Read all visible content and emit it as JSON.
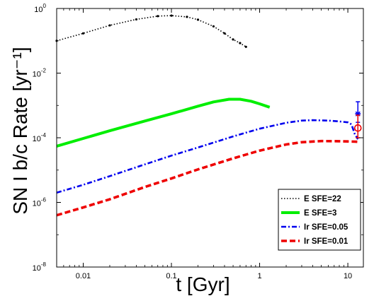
{
  "chart_data": {
    "type": "line",
    "title": "",
    "xlabel": "t [Gyr]",
    "ylabel": "SN I b/c Rate [yr⁻¹]",
    "xscale": "log",
    "yscale": "log",
    "xlim": [
      0.005,
      15
    ],
    "ylim": [
      1e-08,
      1
    ],
    "x_ticks": [
      {
        "value": 0.01,
        "label": "0.01"
      },
      {
        "value": 0.1,
        "label": "0.1"
      },
      {
        "value": 1,
        "label": "1"
      },
      {
        "value": 10,
        "label": "10"
      }
    ],
    "y_ticks": [
      {
        "value": 1e-08,
        "base": "10",
        "exp": "-8"
      },
      {
        "value": 1e-06,
        "base": "10",
        "exp": "-6"
      },
      {
        "value": 0.0001,
        "base": "10",
        "exp": "-4"
      },
      {
        "value": 0.01,
        "base": "10",
        "exp": "-2"
      },
      {
        "value": 1,
        "base": "10",
        "exp": "0"
      }
    ],
    "grid": false,
    "legend_position": "bottom-right",
    "series": [
      {
        "name": "E SFE=22",
        "color": "#000000",
        "style": "dotted-markers",
        "x": [
          0.005,
          0.01,
          0.02,
          0.04,
          0.07,
          0.1,
          0.15,
          0.2,
          0.3,
          0.4,
          0.5,
          0.6,
          0.7
        ],
        "y": [
          0.1,
          0.17,
          0.3,
          0.46,
          0.58,
          0.6,
          0.55,
          0.45,
          0.28,
          0.17,
          0.11,
          0.085,
          0.065
        ]
      },
      {
        "name": "E SFE=3",
        "color": "#00ee00",
        "style": "solid",
        "x": [
          0.005,
          0.01,
          0.02,
          0.05,
          0.1,
          0.2,
          0.3,
          0.45,
          0.6,
          0.8,
          1.0,
          1.3
        ],
        "y": [
          5.5e-05,
          9.5e-05,
          0.000165,
          0.00033,
          0.00055,
          0.00095,
          0.00128,
          0.00155,
          0.00155,
          0.00135,
          0.00112,
          0.00088
        ]
      },
      {
        "name": "Ir SFE=0.05",
        "color": "#0000ee",
        "style": "dashdot",
        "x": [
          0.005,
          0.01,
          0.02,
          0.05,
          0.1,
          0.2,
          0.5,
          1.0,
          2.0,
          3.0,
          4.0,
          6.0,
          8.0,
          10.0,
          11.0,
          12.0,
          13.0
        ],
        "y": [
          2e-06,
          3.5e-06,
          6.5e-06,
          1.5e-05,
          2.8e-05,
          5e-05,
          0.00011,
          0.00019,
          0.00029,
          0.00034,
          0.00035,
          0.00034,
          0.00032,
          0.0003,
          0.00026,
          0.00013,
          9e-05
        ]
      },
      {
        "name": "Ir SFE=0.01",
        "color": "#ee0000",
        "style": "dashed",
        "x": [
          0.005,
          0.01,
          0.02,
          0.05,
          0.1,
          0.2,
          0.5,
          1.0,
          2.0,
          3.0,
          5.0,
          8.0,
          10.0,
          12.0,
          13.0
        ],
        "y": [
          4e-07,
          7e-07,
          1.25e-06,
          3e-06,
          5.5e-06,
          1.05e-05,
          2.3e-05,
          4e-05,
          6.2e-05,
          7.3e-05,
          7.9e-05,
          7.8e-05,
          7.7e-05,
          7.6e-05,
          7.5e-05
        ]
      }
    ],
    "observations": [
      {
        "marker": "star",
        "color": "#0000ee",
        "x": 13,
        "y": 0.00055,
        "yerr": [
          0.0003,
          0.0013
        ]
      },
      {
        "marker": "circle",
        "color": "#ee0000",
        "x": 13,
        "y": 0.0002,
        "yerr": [
          0.0001,
          0.0005
        ]
      }
    ]
  }
}
